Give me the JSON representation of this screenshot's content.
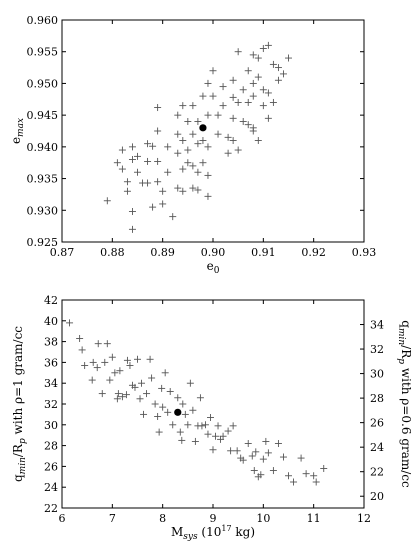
{
  "chart_data": [
    {
      "type": "scatter",
      "xlabel": "e0",
      "ylabel": "emax",
      "xlim": [
        0.87,
        0.93
      ],
      "ylim": [
        0.925,
        0.96
      ],
      "xticks": [
        "0.87",
        "0.88",
        "0.89",
        "0.90",
        "0.91",
        "0.92",
        "0.93"
      ],
      "yticks": [
        "0.925",
        "0.930",
        "0.935",
        "0.940",
        "0.945",
        "0.950",
        "0.955",
        "0.960"
      ],
      "marker": "plus",
      "points": [
        [
          0.879,
          0.9315
        ],
        [
          0.881,
          0.9375
        ],
        [
          0.882,
          0.9395
        ],
        [
          0.882,
          0.9365
        ],
        [
          0.883,
          0.9345
        ],
        [
          0.883,
          0.933
        ],
        [
          0.884,
          0.94
        ],
        [
          0.884,
          0.938
        ],
        [
          0.884,
          0.9298
        ],
        [
          0.884,
          0.927
        ],
        [
          0.885,
          0.9385
        ],
        [
          0.885,
          0.936
        ],
        [
          0.886,
          0.9343
        ],
        [
          0.887,
          0.9405
        ],
        [
          0.887,
          0.9377
        ],
        [
          0.887,
          0.9343
        ],
        [
          0.888,
          0.9401
        ],
        [
          0.888,
          0.9305
        ],
        [
          0.889,
          0.9462
        ],
        [
          0.889,
          0.9425
        ],
        [
          0.889,
          0.9377
        ],
        [
          0.889,
          0.9345
        ],
        [
          0.89,
          0.933
        ],
        [
          0.89,
          0.931
        ],
        [
          0.891,
          0.94
        ],
        [
          0.891,
          0.936
        ],
        [
          0.892,
          0.929
        ],
        [
          0.893,
          0.945
        ],
        [
          0.893,
          0.942
        ],
        [
          0.893,
          0.939
        ],
        [
          0.893,
          0.9335
        ],
        [
          0.894,
          0.9465
        ],
        [
          0.894,
          0.941
        ],
        [
          0.894,
          0.9365
        ],
        [
          0.894,
          0.933
        ],
        [
          0.895,
          0.944
        ],
        [
          0.895,
          0.9395
        ],
        [
          0.895,
          0.9375
        ],
        [
          0.896,
          0.9465
        ],
        [
          0.896,
          0.942
        ],
        [
          0.896,
          0.937
        ],
        [
          0.896,
          0.9335
        ],
        [
          0.897,
          0.944
        ],
        [
          0.897,
          0.9405
        ],
        [
          0.897,
          0.936
        ],
        [
          0.897,
          0.9332
        ],
        [
          0.898,
          0.948
        ],
        [
          0.898,
          0.941
        ],
        [
          0.898,
          0.9375
        ],
        [
          0.899,
          0.95
        ],
        [
          0.899,
          0.945
        ],
        [
          0.899,
          0.94
        ],
        [
          0.899,
          0.9355
        ],
        [
          0.899,
          0.9322
        ],
        [
          0.9,
          0.952
        ],
        [
          0.9,
          0.948
        ],
        [
          0.901,
          0.945
        ],
        [
          0.901,
          0.942
        ],
        [
          0.902,
          0.9495
        ],
        [
          0.902,
          0.9465
        ],
        [
          0.903,
          0.9415
        ],
        [
          0.903,
          0.939
        ],
        [
          0.904,
          0.9505
        ],
        [
          0.904,
          0.9478
        ],
        [
          0.904,
          0.9445
        ],
        [
          0.904,
          0.941
        ],
        [
          0.905,
          0.955
        ],
        [
          0.905,
          0.947
        ],
        [
          0.905,
          0.9395
        ],
        [
          0.906,
          0.949
        ],
        [
          0.906,
          0.944
        ],
        [
          0.907,
          0.952
        ],
        [
          0.907,
          0.947
        ],
        [
          0.907,
          0.9435
        ],
        [
          0.908,
          0.9545
        ],
        [
          0.908,
          0.95
        ],
        [
          0.908,
          0.948
        ],
        [
          0.908,
          0.943
        ],
        [
          0.908,
          0.9425
        ],
        [
          0.909,
          0.954
        ],
        [
          0.909,
          0.951
        ],
        [
          0.909,
          0.941
        ],
        [
          0.91,
          0.9555
        ],
        [
          0.91,
          0.949
        ],
        [
          0.91,
          0.9465
        ],
        [
          0.911,
          0.956
        ],
        [
          0.911,
          0.9485
        ],
        [
          0.911,
          0.9445
        ],
        [
          0.912,
          0.953
        ],
        [
          0.912,
          0.947
        ],
        [
          0.913,
          0.9525
        ],
        [
          0.913,
          0.9505
        ],
        [
          0.914,
          0.9515
        ],
        [
          0.915,
          0.954
        ]
      ],
      "highlight": [
        0.898,
        0.943
      ]
    },
    {
      "type": "scatter",
      "xlabel": "Msys (10^17 kg)",
      "ylabel": "qmin/Rp with ρ=1 gram/cc",
      "ylabel_right": "qmin/Rp with ρ=0.6 gram/cc",
      "xlim": [
        6,
        12
      ],
      "ylim": [
        22,
        42
      ],
      "ylim_right": [
        19.04,
        36.0
      ],
      "xticks": [
        "6",
        "7",
        "8",
        "9",
        "10",
        "11",
        "12"
      ],
      "yticks": [
        "22",
        "24",
        "26",
        "28",
        "30",
        "32",
        "34",
        "36",
        "38",
        "40",
        "42"
      ],
      "yticks_right": [
        "20",
        "22",
        "24",
        "26",
        "28",
        "30",
        "32",
        "34"
      ],
      "marker": "plus",
      "points": [
        [
          6.15,
          39.8
        ],
        [
          6.35,
          38.3
        ],
        [
          6.4,
          37.2
        ],
        [
          6.45,
          35.7
        ],
        [
          6.6,
          34.3
        ],
        [
          6.62,
          36.0
        ],
        [
          6.7,
          35.5
        ],
        [
          6.72,
          37.8
        ],
        [
          6.8,
          33.0
        ],
        [
          6.85,
          36.0
        ],
        [
          6.9,
          37.8
        ],
        [
          6.95,
          34.3
        ],
        [
          7.0,
          36.5
        ],
        [
          7.05,
          35.0
        ],
        [
          7.1,
          32.5
        ],
        [
          7.12,
          33.0
        ],
        [
          7.15,
          35.2
        ],
        [
          7.2,
          32.7
        ],
        [
          7.28,
          32.9
        ],
        [
          7.3,
          36.2
        ],
        [
          7.35,
          35.7
        ],
        [
          7.4,
          33.8
        ],
        [
          7.45,
          33.6
        ],
        [
          7.5,
          36.3
        ],
        [
          7.55,
          32.5
        ],
        [
          7.58,
          34.0
        ],
        [
          7.62,
          31.0
        ],
        [
          7.68,
          33.0
        ],
        [
          7.75,
          36.3
        ],
        [
          7.78,
          34.5
        ],
        [
          7.85,
          32.0
        ],
        [
          7.9,
          30.8
        ],
        [
          7.93,
          29.3
        ],
        [
          7.98,
          33.5
        ],
        [
          8.0,
          31.7
        ],
        [
          8.05,
          35.0
        ],
        [
          8.1,
          31.2
        ],
        [
          8.15,
          33.2
        ],
        [
          8.2,
          30.0
        ],
        [
          8.3,
          32.6
        ],
        [
          8.35,
          29.3
        ],
        [
          8.38,
          28.5
        ],
        [
          8.4,
          32.0
        ],
        [
          8.45,
          31.0
        ],
        [
          8.5,
          30.0
        ],
        [
          8.55,
          34.0
        ],
        [
          8.6,
          31.4
        ],
        [
          8.65,
          28.4
        ],
        [
          8.7,
          29.9
        ],
        [
          8.75,
          32.6
        ],
        [
          8.78,
          29.9
        ],
        [
          8.85,
          30.0
        ],
        [
          8.9,
          29.1
        ],
        [
          8.95,
          30.7
        ],
        [
          9.0,
          27.6
        ],
        [
          9.05,
          28.9
        ],
        [
          9.1,
          29.9
        ],
        [
          9.15,
          28.6
        ],
        [
          9.2,
          28.9
        ],
        [
          9.3,
          29.4
        ],
        [
          9.35,
          27.5
        ],
        [
          9.4,
          29.9
        ],
        [
          9.48,
          27.5
        ],
        [
          9.55,
          26.8
        ],
        [
          9.6,
          26.6
        ],
        [
          9.7,
          28.2
        ],
        [
          9.78,
          27.0
        ],
        [
          9.82,
          25.6
        ],
        [
          9.85,
          27.4
        ],
        [
          9.9,
          25.0
        ],
        [
          9.95,
          25.2
        ],
        [
          10.0,
          26.7
        ],
        [
          10.05,
          28.4
        ],
        [
          10.1,
          27.3
        ],
        [
          10.2,
          25.6
        ],
        [
          10.3,
          28.2
        ],
        [
          10.4,
          26.9
        ],
        [
          10.5,
          25.1
        ],
        [
          10.6,
          24.5
        ],
        [
          10.75,
          26.8
        ],
        [
          10.85,
          25.3
        ],
        [
          11.0,
          25.1
        ],
        [
          11.05,
          24.5
        ],
        [
          11.2,
          25.8
        ]
      ],
      "highlight": [
        8.3,
        31.2
      ]
    }
  ]
}
